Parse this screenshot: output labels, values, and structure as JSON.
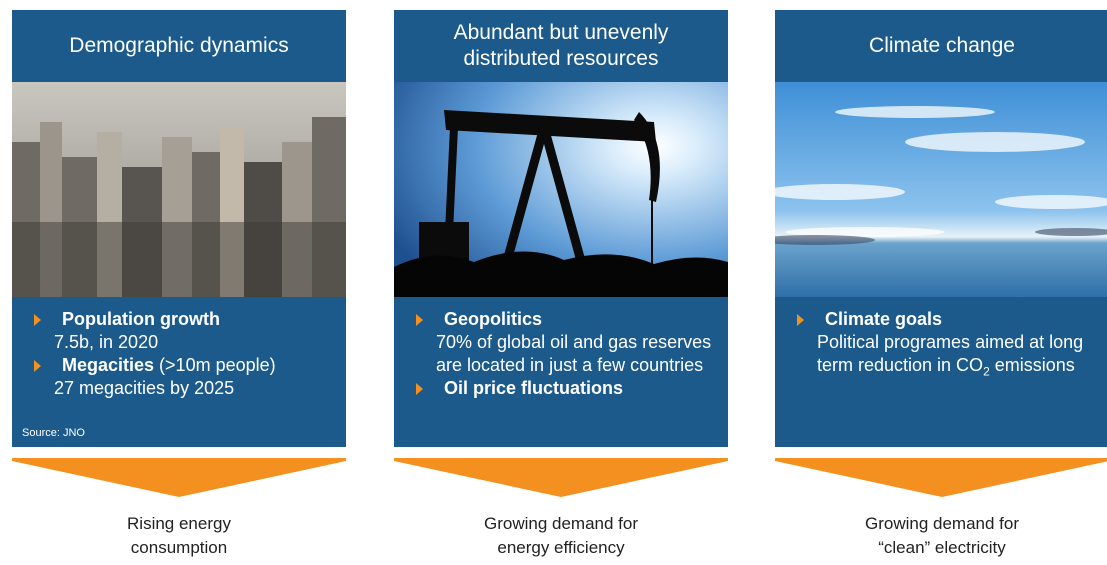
{
  "columns": [
    {
      "title_lines": [
        "Demographic dynamics"
      ],
      "bullets": [
        {
          "heading": "Population growth",
          "suffix": null,
          "text": "7.5b, in 2020"
        },
        {
          "heading": "Megacities",
          "suffix": " (>10m people)",
          "text": "27 megacities by 2025"
        }
      ],
      "source": "Source: JNO",
      "outcome_lines": [
        "Rising energy",
        "consumption"
      ]
    },
    {
      "title_lines": [
        "Abundant but unevenly",
        "distributed resources"
      ],
      "bullets": [
        {
          "heading": "Geopolitics",
          "suffix": null,
          "text": "70% of global oil and gas reserves are located in just a few countries"
        },
        {
          "heading": "Oil price fluctuations",
          "suffix": null,
          "text": null
        }
      ],
      "source": null,
      "outcome_lines": [
        "Growing demand for",
        "energy efficiency"
      ]
    },
    {
      "title_lines": [
        "Climate change"
      ],
      "bullets": [
        {
          "heading": "Climate goals",
          "suffix": null,
          "text": "Political programes aimed at long term reduction in CO",
          "subscript": "2",
          "text_after": " emissions"
        }
      ],
      "source": null,
      "outcome_lines": [
        "Growing demand for",
        "“clean” electricity"
      ]
    }
  ]
}
